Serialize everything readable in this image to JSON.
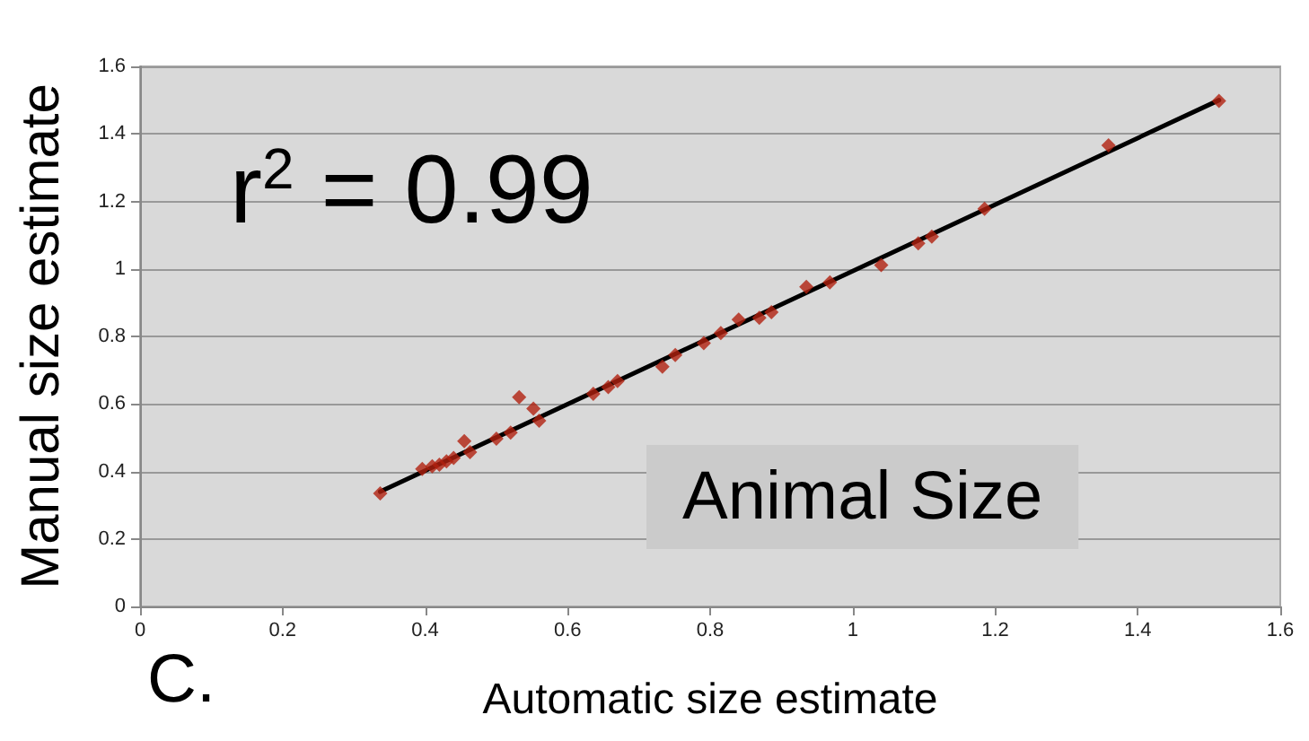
{
  "chart_data": {
    "type": "scatter",
    "xlabel": "Automatic size estimate",
    "ylabel": "Manual size estimate",
    "annotations": [
      "r$^{2}$ = 0.99",
      "Animal Size",
      "C."
    ],
    "xlim": [
      0,
      1.6
    ],
    "xticks": [
      0,
      0.2,
      0.4,
      0.6,
      0.8,
      1,
      1.2,
      1.4,
      1.6
    ],
    "ylim": [
      0,
      1.6
    ],
    "yticks": [
      0,
      0.2,
      0.4,
      0.6,
      0.8,
      1,
      1.2,
      1.4,
      1.6
    ],
    "grid": "y",
    "marker": "diamond",
    "series": [
      {
        "color": "#b0200f",
        "x": [
          0.337,
          0.396,
          0.41,
          0.42,
          0.43,
          0.44,
          0.455,
          0.463,
          0.5,
          0.52,
          0.532,
          0.552,
          0.56,
          0.636,
          0.657,
          0.67,
          0.733,
          0.751,
          0.791,
          0.815,
          0.84,
          0.869,
          0.886,
          0.935,
          0.968,
          1.04,
          1.092,
          1.111,
          1.185,
          1.359,
          1.514
        ],
        "values": [
          0.335,
          0.407,
          0.415,
          0.42,
          0.43,
          0.44,
          0.49,
          0.457,
          0.497,
          0.515,
          0.62,
          0.586,
          0.55,
          0.63,
          0.65,
          0.668,
          0.71,
          0.745,
          0.78,
          0.81,
          0.85,
          0.855,
          0.872,
          0.947,
          0.96,
          1.011,
          1.076,
          1.096,
          1.178,
          1.366,
          1.498
        ]
      },
      {
        "type": "line",
        "color": "#000000",
        "marker": "none",
        "line_style": "solid",
        "x": [
          0.337,
          1.514
        ],
        "values": [
          0.34,
          1.5
        ]
      }
    ]
  }
}
